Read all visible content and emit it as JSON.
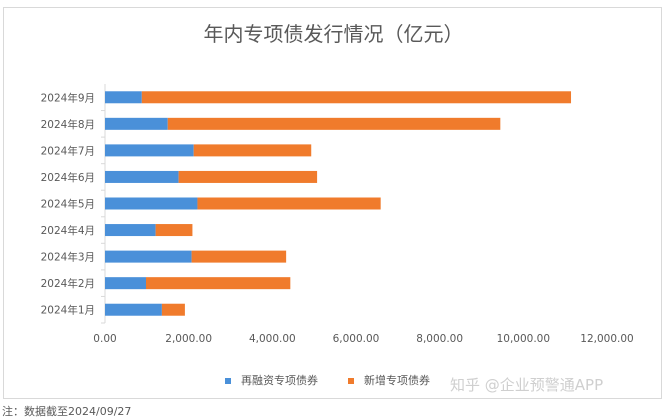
{
  "chart_data": {
    "type": "bar",
    "orientation": "horizontal",
    "stacked": true,
    "title": "年内专项债发行情况（亿元）",
    "categories": [
      "2024年1月",
      "2024年2月",
      "2024年3月",
      "2024年4月",
      "2024年5月",
      "2024年6月",
      "2024年7月",
      "2024年8月",
      "2024年9月"
    ],
    "series": [
      {
        "name": "再融资专项债券",
        "color": "#4a90d9",
        "values": [
          1360,
          980,
          2070,
          1210,
          2210,
          1760,
          2120,
          1500,
          880
        ]
      },
      {
        "name": "新增专项债券",
        "color": "#f07b2c",
        "values": [
          550,
          3450,
          2260,
          880,
          4380,
          3310,
          2810,
          7950,
          10260
        ]
      }
    ],
    "xlim": [
      0,
      12000
    ],
    "xticks": [
      "0.00",
      "2,000.00",
      "4,000.00",
      "6,000.00",
      "8,000.00",
      "10,000.00",
      "12,000.00"
    ],
    "grid": false,
    "legend": "bottom"
  },
  "note": "注：数据截至2024/09/27",
  "watermark": "知乎 @企业预警通APP"
}
